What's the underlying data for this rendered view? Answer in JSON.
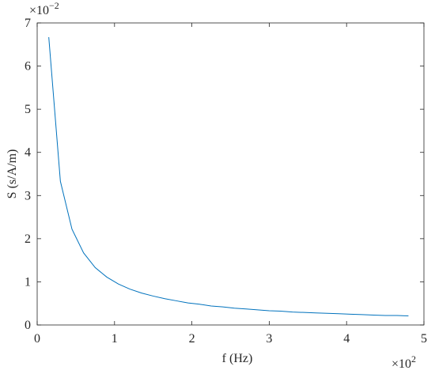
{
  "chart_data": {
    "type": "line",
    "xlabel": "f (Hz)",
    "ylabel": "S (s/A/m)",
    "x_multiplier": "×10",
    "x_multiplier_exp": "2",
    "y_multiplier": "×10",
    "y_multiplier_exp": "−2",
    "x": [
      0.15,
      0.3,
      0.45,
      0.6,
      0.75,
      0.9,
      1.05,
      1.2,
      1.35,
      1.5,
      1.65,
      1.8,
      1.95,
      2.1,
      2.25,
      2.4,
      2.55,
      2.7,
      2.85,
      3.0,
      3.15,
      3.3,
      3.45,
      3.6,
      3.75,
      3.9,
      4.05,
      4.2,
      4.35,
      4.5,
      4.65,
      4.8
    ],
    "series": [
      {
        "color": "#0072bd",
        "values": [
          6.67,
          3.33,
          2.22,
          1.67,
          1.33,
          1.11,
          0.95,
          0.83,
          0.74,
          0.67,
          0.61,
          0.56,
          0.51,
          0.48,
          0.44,
          0.42,
          0.39,
          0.37,
          0.35,
          0.33,
          0.32,
          0.3,
          0.29,
          0.28,
          0.27,
          0.26,
          0.25,
          0.24,
          0.23,
          0.22,
          0.22,
          0.21
        ]
      }
    ],
    "xlim": [
      0,
      5
    ],
    "xticks": [
      0,
      1,
      2,
      3,
      4,
      5
    ],
    "ylim": [
      0,
      7
    ],
    "yticks": [
      0,
      1,
      2,
      3,
      4,
      5,
      6,
      7
    ]
  }
}
